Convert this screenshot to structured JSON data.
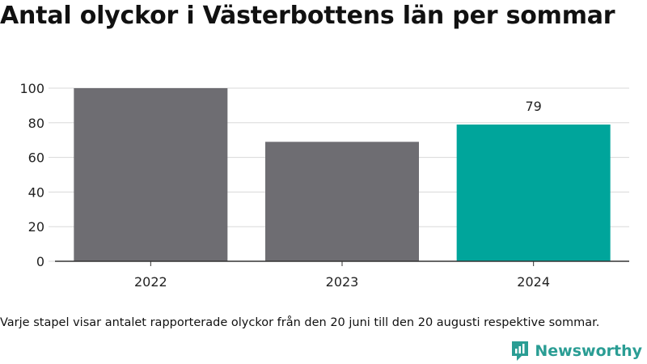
{
  "title": "Antal olyckor i Västerbottens län per sommar",
  "note": "Varje stapel visar antalet rapporterade olyckor från den 20 juni till den 20 augusti respektive sommar.",
  "brand": {
    "name": "Newsworthy",
    "icon": "newsworthy-logo-icon",
    "color": "#2a9d94"
  },
  "chart_data": {
    "type": "bar",
    "categories": [
      "2022",
      "2023",
      "2024"
    ],
    "values": [
      100,
      69,
      79
    ],
    "colors": [
      "#6e6d72",
      "#6e6d72",
      "#00a59b"
    ],
    "data_labels": [
      null,
      null,
      "79"
    ],
    "yticks": [
      0,
      20,
      40,
      60,
      80,
      100
    ],
    "ylim": [
      0,
      100
    ],
    "grid": true,
    "xlabel": "",
    "ylabel": ""
  }
}
